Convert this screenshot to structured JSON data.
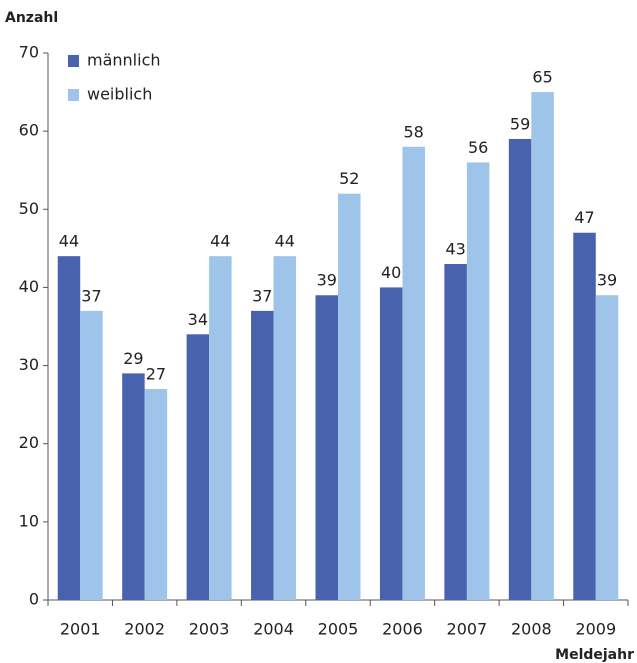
{
  "chart_data": {
    "type": "bar",
    "y_label": "Anzahl",
    "x_label": "Meldejahr",
    "categories": [
      "2001",
      "2002",
      "2003",
      "2004",
      "2005",
      "2006",
      "2007",
      "2008",
      "2009"
    ],
    "series": [
      {
        "name": "männlich",
        "color": "#4862ae",
        "values": [
          44,
          29,
          34,
          37,
          39,
          40,
          43,
          59,
          47
        ]
      },
      {
        "name": "weiblich",
        "color": "#9ec5e9",
        "values": [
          37,
          27,
          44,
          44,
          52,
          58,
          56,
          65,
          39
        ]
      }
    ],
    "ylim": [
      0,
      70
    ],
    "yticks": [
      0,
      10,
      20,
      30,
      40,
      50,
      60,
      70
    ],
    "grid": false,
    "legend": "top-left"
  }
}
